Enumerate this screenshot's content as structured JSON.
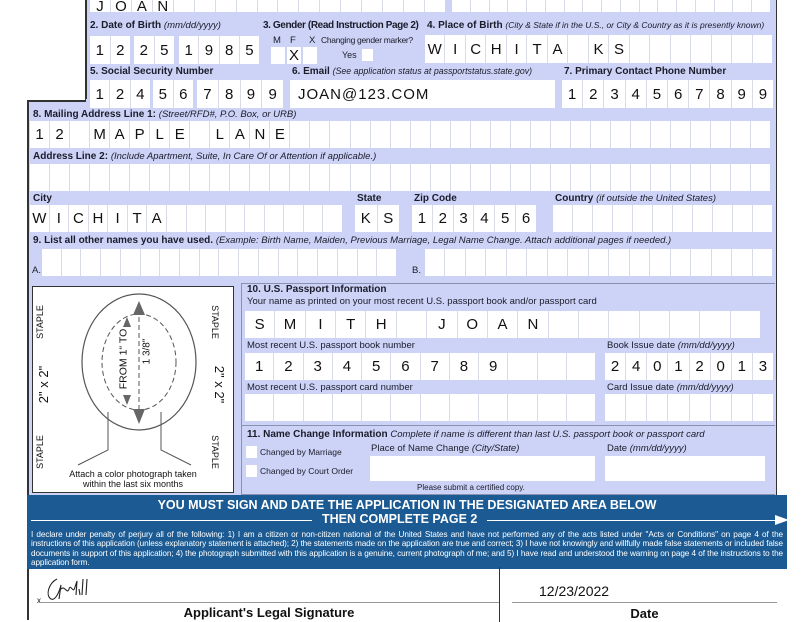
{
  "name_row": {
    "first_name": "JOAN"
  },
  "dob": {
    "label": "2. Date of Birth",
    "hint": "(mm/dd/yyyy)",
    "month": "12",
    "day": "25",
    "year": "1985"
  },
  "gender": {
    "label": "3. Gender (Read Instruction Page 2)",
    "m": "M",
    "f": "F",
    "x": "X",
    "changing": "Changing gender marker?",
    "yes": "Yes",
    "selected_mark": "X"
  },
  "pob": {
    "label": "4. Place of Birth",
    "hint": "(City & State if in the U.S., or City & Country as it is presently known)",
    "value": "WICHITA KS"
  },
  "ssn": {
    "label": "5. Social Security Number",
    "value": "124567899"
  },
  "email": {
    "label": "6. Email",
    "hint": "(See application status at passportstatus.state.gov)",
    "value": "JOAN@123.COM"
  },
  "phone": {
    "label": "7. Primary Contact Phone Number",
    "value": "1234567899"
  },
  "address1": {
    "label": "8. Mailing Address Line 1:",
    "hint": "(Street/RFD#, P.O. Box, or URB)",
    "value": "12 MAPLE LANE"
  },
  "address2": {
    "label": "Address Line 2:",
    "hint": "(Include Apartment, Suite, In Care Of or Attention if applicable.)",
    "value": ""
  },
  "city": {
    "label": "City",
    "value": "WICHITA"
  },
  "state": {
    "label": "State",
    "value": "KS"
  },
  "zip": {
    "label": "Zip Code",
    "value": "123456"
  },
  "country": {
    "label": "Country",
    "hint": "(if outside the United States)",
    "value": ""
  },
  "other_names": {
    "label": "9. List all other names you have used.",
    "hint": "(Example: Birth Name, Maiden, Previous Marriage, Legal Name Change.  Attach additional  pages if needed.)",
    "a": "A.",
    "b": "B."
  },
  "photo": {
    "staple": "STAPLE",
    "size": "2\" x 2\"",
    "from": "FROM 1\" TO",
    "to": "1 3/8\"",
    "caption1": "Attach a color photograph taken",
    "caption2": "within the last six months"
  },
  "passport": {
    "label": "10. U.S. Passport Information",
    "name_hint": "Your name as printed on your most recent U.S. passport book and/or passport card",
    "name_value": "SMITH JOAN",
    "book_label": "Most recent U.S. passport book number",
    "book_value": "123456789",
    "book_date_label": "Book Issue date",
    "book_date_hint": "(mm/dd/yyyy)",
    "book_date_value": "24012013",
    "card_label": "Most recent U.S. passport card number",
    "card_value": "",
    "card_date_label": "Card Issue date",
    "card_date_hint": "(mm/dd/yyyy)"
  },
  "name_change": {
    "label": "11. Name Change Information",
    "hint": "Complete if name is different than last U.S. passport book or passport card",
    "marriage": "Changed by Marriage",
    "court": "Changed by Court Order",
    "place_label": "Place of Name Change",
    "place_hint": "(City/State)",
    "date_label": "Date",
    "date_hint": "(mm/dd/yyyy)",
    "certified": "Please submit a certified copy."
  },
  "banner": {
    "line1": "YOU MUST SIGN AND DATE THE APPLICATION IN THE DESIGNATED AREA BELOW",
    "line2": "THEN COMPLETE PAGE 2",
    "declaration": "I declare under penalty of perjury all of the following: 1) I am a citizen or non-citizen national of the United States and have not performed any of the acts listed under \"Acts or Conditions\" on page 4 of the instructions of this application (unless explanatory statement is attached); 2) the statements made on the application are true and correct; 3) I have not knowingly and willfully made false statements or included false documents in support of this application; 4) the photograph submitted with this application is a genuine, current photograph of me; and 5) I have read and understood the warning on page 4 of the instructions to the application form."
  },
  "signature": {
    "x": "x",
    "label": "Applicant's Legal Signature",
    "date_value": "12/23/2022",
    "date_label": "Date"
  },
  "colors": {
    "form_bg": "#ccd3f6",
    "banner": "#1b5a92"
  }
}
